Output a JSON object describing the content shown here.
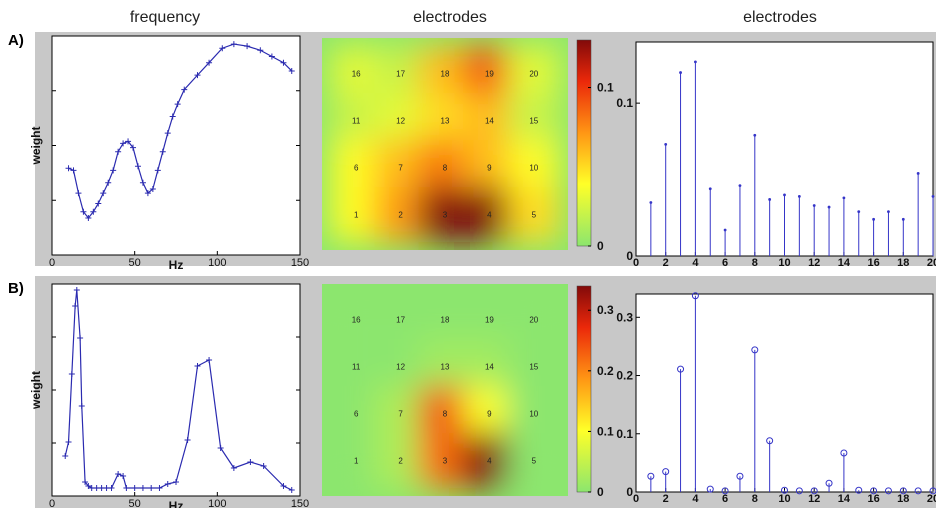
{
  "headers": {
    "col1": "frequency",
    "col2": "electrodes",
    "col3": "electrodes"
  },
  "rows": {
    "a": "A)",
    "b": "B)"
  },
  "chart_data": [
    {
      "id": "A-frequency",
      "type": "line",
      "xlabel": "Hz",
      "ylabel": "weight",
      "xlim": [
        0,
        150
      ],
      "ylim": [
        0,
        1
      ],
      "xticks": [
        "0",
        "50",
        "100",
        "150"
      ],
      "x": [
        10,
        13,
        16,
        19,
        22,
        25,
        28,
        31,
        34,
        37,
        40,
        43,
        46,
        49,
        52,
        55,
        58,
        61,
        64,
        67,
        70,
        73,
        76,
        80,
        88,
        95,
        103,
        110,
        118,
        126,
        133,
        140,
        145
      ],
      "y": [
        0.39,
        0.38,
        0.27,
        0.18,
        0.15,
        0.18,
        0.22,
        0.27,
        0.32,
        0.38,
        0.47,
        0.51,
        0.52,
        0.49,
        0.4,
        0.32,
        0.27,
        0.29,
        0.38,
        0.47,
        0.56,
        0.64,
        0.7,
        0.77,
        0.84,
        0.9,
        0.97,
        0.99,
        0.98,
        0.96,
        0.93,
        0.9,
        0.86
      ]
    },
    {
      "id": "A-heatmap",
      "type": "heatmap",
      "colorbar_ticks": [
        "0",
        "0.1"
      ],
      "colorbar_range": [
        0,
        0.13
      ],
      "electrode_labels": [
        "16",
        "17",
        "18",
        "19",
        "20",
        "11",
        "12",
        "13",
        "14",
        "15",
        "6",
        "7",
        "8",
        "9",
        "10",
        "1",
        "2",
        "3",
        "4",
        "5"
      ],
      "grid": [
        [
          0.03,
          0.02,
          0.06,
          0.09,
          0.03
        ],
        [
          0.02,
          0.03,
          0.05,
          0.06,
          0.02
        ],
        [
          0.04,
          0.06,
          0.08,
          0.06,
          0.04
        ],
        [
          0.04,
          0.07,
          0.13,
          0.13,
          0.05
        ]
      ]
    },
    {
      "id": "A-stem",
      "type": "bar",
      "xlim": [
        0,
        20
      ],
      "ylim": [
        0,
        0.14
      ],
      "xticks": [
        "0",
        "2",
        "4",
        "6",
        "8",
        "10",
        "12",
        "14",
        "16",
        "18",
        "20"
      ],
      "yticks": [
        "0",
        "0.1"
      ],
      "categories": [
        1,
        2,
        3,
        4,
        5,
        6,
        7,
        8,
        9,
        10,
        11,
        12,
        13,
        14,
        15,
        16,
        17,
        18,
        19,
        20
      ],
      "values": [
        0.035,
        0.073,
        0.12,
        0.127,
        0.044,
        0.017,
        0.046,
        0.079,
        0.037,
        0.04,
        0.039,
        0.033,
        0.032,
        0.038,
        0.029,
        0.024,
        0.029,
        0.024,
        0.054,
        0.039
      ]
    },
    {
      "id": "B-frequency",
      "type": "line",
      "xlabel": "Hz",
      "ylabel": "weight",
      "xlim": [
        0,
        150
      ],
      "ylim": [
        0,
        1
      ],
      "xticks": [
        "0",
        "50",
        "100",
        "150"
      ],
      "x": [
        8,
        10,
        12,
        14,
        15,
        17,
        18,
        20,
        22,
        24,
        27,
        30,
        33,
        36,
        40,
        43,
        45,
        50,
        55,
        60,
        65,
        70,
        75,
        82,
        88,
        95,
        102,
        110,
        120,
        128,
        140,
        145
      ],
      "y": [
        0.17,
        0.24,
        0.58,
        0.92,
        1.0,
        0.76,
        0.42,
        0.04,
        0.02,
        0.01,
        0.01,
        0.01,
        0.01,
        0.01,
        0.08,
        0.07,
        0.01,
        0.01,
        0.01,
        0.01,
        0.01,
        0.03,
        0.04,
        0.25,
        0.62,
        0.65,
        0.21,
        0.11,
        0.14,
        0.12,
        0.02,
        0.0
      ]
    },
    {
      "id": "B-heatmap",
      "type": "heatmap",
      "colorbar_ticks": [
        "0",
        "0.1",
        "0.2",
        "0.3"
      ],
      "colorbar_range": [
        0,
        0.34
      ],
      "electrode_labels": [
        "16",
        "17",
        "18",
        "19",
        "20",
        "11",
        "12",
        "13",
        "14",
        "15",
        "6",
        "7",
        "8",
        "9",
        "10",
        "1",
        "2",
        "3",
        "4",
        "5"
      ],
      "grid": [
        [
          0.0,
          0.0,
          0.0,
          0.0,
          0.0
        ],
        [
          0.0,
          0.0,
          0.02,
          0.02,
          0.0
        ],
        [
          0.0,
          0.03,
          0.24,
          0.1,
          0.0
        ],
        [
          0.0,
          0.03,
          0.22,
          0.34,
          0.0
        ]
      ]
    },
    {
      "id": "B-stem",
      "type": "bar",
      "xlim": [
        0,
        20
      ],
      "ylim": [
        0,
        0.34
      ],
      "xticks": [
        "0",
        "2",
        "4",
        "6",
        "8",
        "10",
        "12",
        "14",
        "16",
        "18",
        "20"
      ],
      "yticks": [
        "0",
        "0.1",
        "0.2",
        "0.3"
      ],
      "categories": [
        1,
        2,
        3,
        4,
        5,
        6,
        7,
        8,
        9,
        10,
        11,
        12,
        13,
        14,
        15,
        16,
        17,
        18,
        19,
        20
      ],
      "values": [
        0.027,
        0.035,
        0.211,
        0.337,
        0.005,
        0.002,
        0.027,
        0.244,
        0.088,
        0.003,
        0.002,
        0.002,
        0.015,
        0.067,
        0.003,
        0.002,
        0.002,
        0.002,
        0.002,
        0.002
      ]
    }
  ]
}
